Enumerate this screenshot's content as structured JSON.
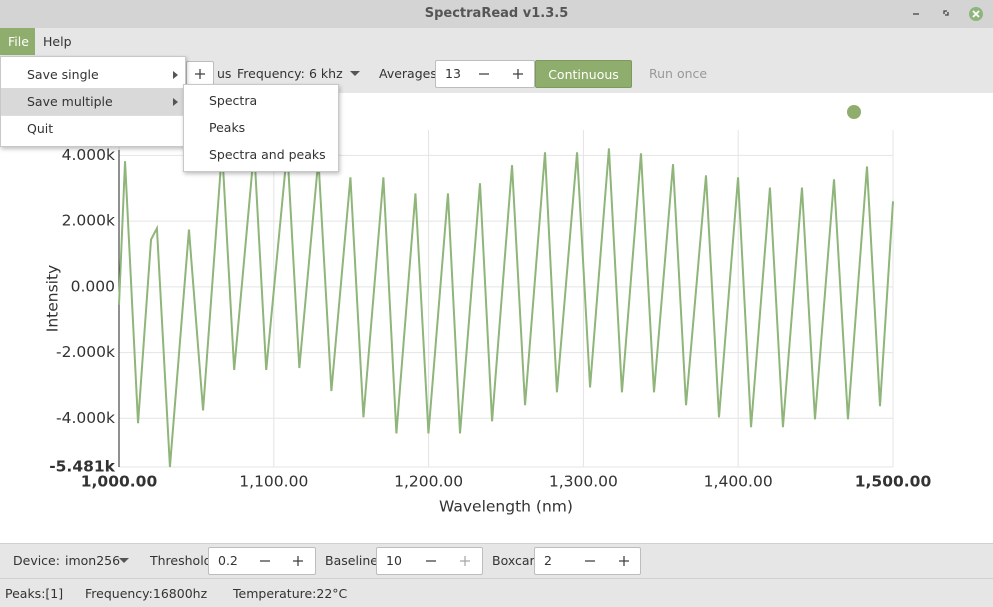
{
  "window": {
    "title": "SpectraRead v1.3.5"
  },
  "menubar": {
    "items": [
      "File",
      "Help"
    ]
  },
  "file_menu": {
    "items": [
      "Save single",
      "Save multiple",
      "Quit"
    ]
  },
  "save_multiple_submenu": {
    "items": [
      "Spectra",
      "Peaks",
      "Spectra and peaks"
    ]
  },
  "toolbar": {
    "exposure_unit": "us",
    "frequency_label": "Frequency:",
    "frequency_value": "6 khz",
    "averages_label": "Averages:",
    "averages_value": 13,
    "continuous_button": "Continuous",
    "run_once_button": "Run once"
  },
  "chart_data": {
    "type": "line",
    "x_label": "Wavelength (nm)",
    "y_label": "Intensity",
    "color": "#8fb57a",
    "grid": true,
    "xlim": [
      1000,
      1500
    ],
    "ylim": [
      -5481,
      4770
    ],
    "xticks": [
      {
        "value": 1000,
        "label": "1,000.00"
      },
      {
        "value": 1100,
        "label": "1,100.00"
      },
      {
        "value": 1200,
        "label": "1,200.00"
      },
      {
        "value": 1300,
        "label": "1,300.00"
      },
      {
        "value": 1400,
        "label": "1,400.00"
      },
      {
        "value": 1500,
        "label": "1,500.00"
      }
    ],
    "yticks": [
      {
        "value": -5481,
        "label": "-5.481k"
      },
      {
        "value": -4000,
        "label": "-4.000k"
      },
      {
        "value": -2000,
        "label": "-2.000k"
      },
      {
        "value": 0,
        "label": "0.000"
      },
      {
        "value": 2000,
        "label": "2.000k"
      },
      {
        "value": 4000,
        "label": "4.000k"
      }
    ],
    "x": [
      1000,
      1003.9,
      1012.3,
      1020.7,
      1024.5,
      1032.9,
      1045.2,
      1054.3,
      1066.6,
      1074.4,
      1087.3,
      1095.1,
      1108.7,
      1116.5,
      1128.8,
      1137.2,
      1149.5,
      1157.9,
      1170.8,
      1179.2,
      1191.5,
      1199.9,
      1212.5,
      1220.3,
      1233.2,
      1241.0,
      1253.9,
      1262.3,
      1275.2,
      1282.9,
      1295.9,
      1304.3,
      1316.5,
      1324.9,
      1337.2,
      1345.6,
      1357.9,
      1366.3,
      1379.2,
      1387.6,
      1399.9,
      1408.3,
      1420.5,
      1428.9,
      1441.2,
      1449.6,
      1461.9,
      1470.9,
      1483.2,
      1491.6,
      1500
    ],
    "values": [
      -550,
      3820,
      -4150,
      1440,
      1780,
      -5481,
      1740,
      -3760,
      4180,
      -2530,
      4180,
      -2530,
      4180,
      -2470,
      3880,
      -3170,
      3330,
      -3970,
      3330,
      -4460,
      2840,
      -4460,
      2840,
      -4460,
      3150,
      -4090,
      3700,
      -3600,
      4090,
      -3210,
      4090,
      -3060,
      4210,
      -3210,
      4060,
      -3210,
      3730,
      -3600,
      3390,
      -3970,
      3330,
      -4270,
      3020,
      -4270,
      3020,
      -4030,
      3270,
      -4030,
      3660,
      -3630,
      2600
    ]
  },
  "controls": {
    "device_label": "Device:",
    "device_value": "imon256",
    "threshold_label": "Threshold:",
    "threshold_value": 0.2,
    "baseline_label": "Baseline:",
    "baseline_value": 10,
    "boxcar_label": "Boxcar:",
    "boxcar_value": 2
  },
  "status_bar": {
    "peaks": "Peaks:[1]",
    "frequency": "Frequency:16800hz",
    "temperature": "Temperature:22°C"
  }
}
